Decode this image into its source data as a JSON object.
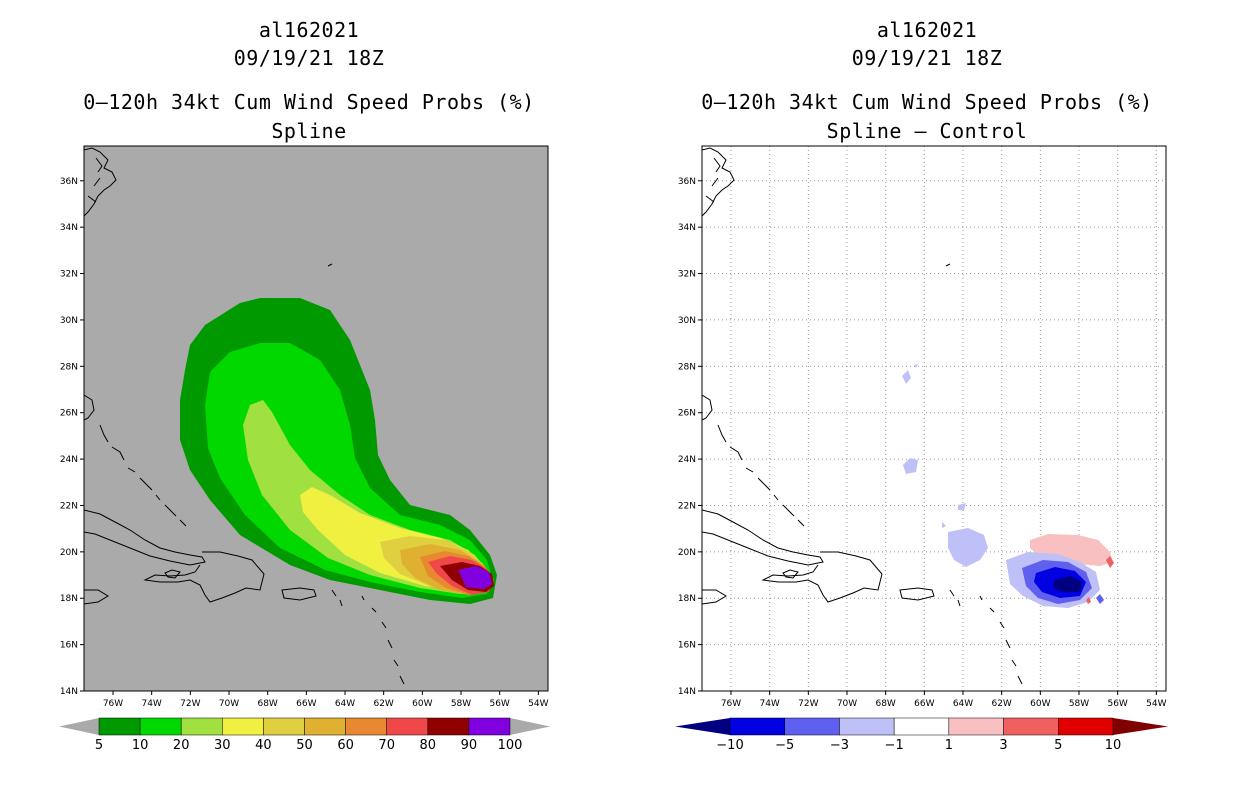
{
  "panels": [
    {
      "storm_id": "al162021",
      "datetime": "09/19/21 18Z",
      "title": "0–120h 34kt Cum Wind Speed Probs (%)",
      "subtitle": "Spline",
      "colorbar": {
        "labels": [
          "5",
          "10",
          "20",
          "30",
          "40",
          "50",
          "60",
          "70",
          "80",
          "90",
          "100"
        ],
        "colors": [
          "#009900",
          "#00d800",
          "#a0e040",
          "#f0f040",
          "#e0d040",
          "#e0b030",
          "#e88830",
          "#f04848",
          "#900000",
          "#8000e0"
        ]
      }
    },
    {
      "storm_id": "al162021",
      "datetime": "09/19/21 18Z",
      "title": "0–120h 34kt Cum Wind Speed Probs (%)",
      "subtitle": "Spline – Control",
      "colorbar": {
        "labels": [
          "−10",
          "−5",
          "−3",
          "−1",
          "1",
          "3",
          "5",
          "10"
        ],
        "colors": [
          "#0000e0",
          "#6060f0",
          "#c0c0f8",
          "#ffffff",
          "#f8c0c0",
          "#f06060",
          "#e00000"
        ],
        "end_colors": [
          "#000080",
          "#800000"
        ]
      }
    }
  ],
  "chart_data": [
    {
      "type": "heatmap",
      "title": "0–120h 34kt Cum Wind Speed Probs (%) – Spline",
      "units": "%",
      "x_ticks": [
        "76W",
        "74W",
        "72W",
        "70W",
        "68W",
        "66W",
        "64W",
        "62W",
        "60W",
        "58W",
        "56W",
        "54W"
      ],
      "y_ticks": [
        "14N",
        "16N",
        "18N",
        "20N",
        "22N",
        "24N",
        "26N",
        "28N",
        "30N",
        "32N",
        "34N",
        "36N"
      ],
      "xlim": [
        -77.5,
        -53.5
      ],
      "ylim": [
        14,
        37.5
      ],
      "contour_levels": [
        5,
        10,
        20,
        30,
        40,
        50,
        60,
        70,
        80,
        90,
        100
      ],
      "max_prob_center": {
        "lon": -56.5,
        "lat": 18.6,
        "prob_range": "90-100"
      },
      "background": "no data (gray)"
    },
    {
      "type": "heatmap",
      "title": "0–120h 34kt Cum Wind Speed Probs (%) – Spline – Control",
      "units": "% difference",
      "x_ticks": [
        "76W",
        "74W",
        "72W",
        "70W",
        "68W",
        "66W",
        "64W",
        "62W",
        "60W",
        "58W",
        "56W",
        "54W"
      ],
      "y_ticks": [
        "14N",
        "16N",
        "18N",
        "20N",
        "22N",
        "24N",
        "26N",
        "28N",
        "30N",
        "32N",
        "34N",
        "36N"
      ],
      "xlim": [
        -77.5,
        -53.5
      ],
      "ylim": [
        14,
        37.5
      ],
      "contour_levels": [
        -10,
        -5,
        -3,
        -1,
        1,
        3,
        5,
        10
      ],
      "min_center": {
        "lon": -58.5,
        "lat": 18.6,
        "value_range": "< -10"
      },
      "positive_area": {
        "lon": -57.5,
        "lat": 20.3,
        "value_range": "1 to 3"
      },
      "grid": true
    }
  ]
}
